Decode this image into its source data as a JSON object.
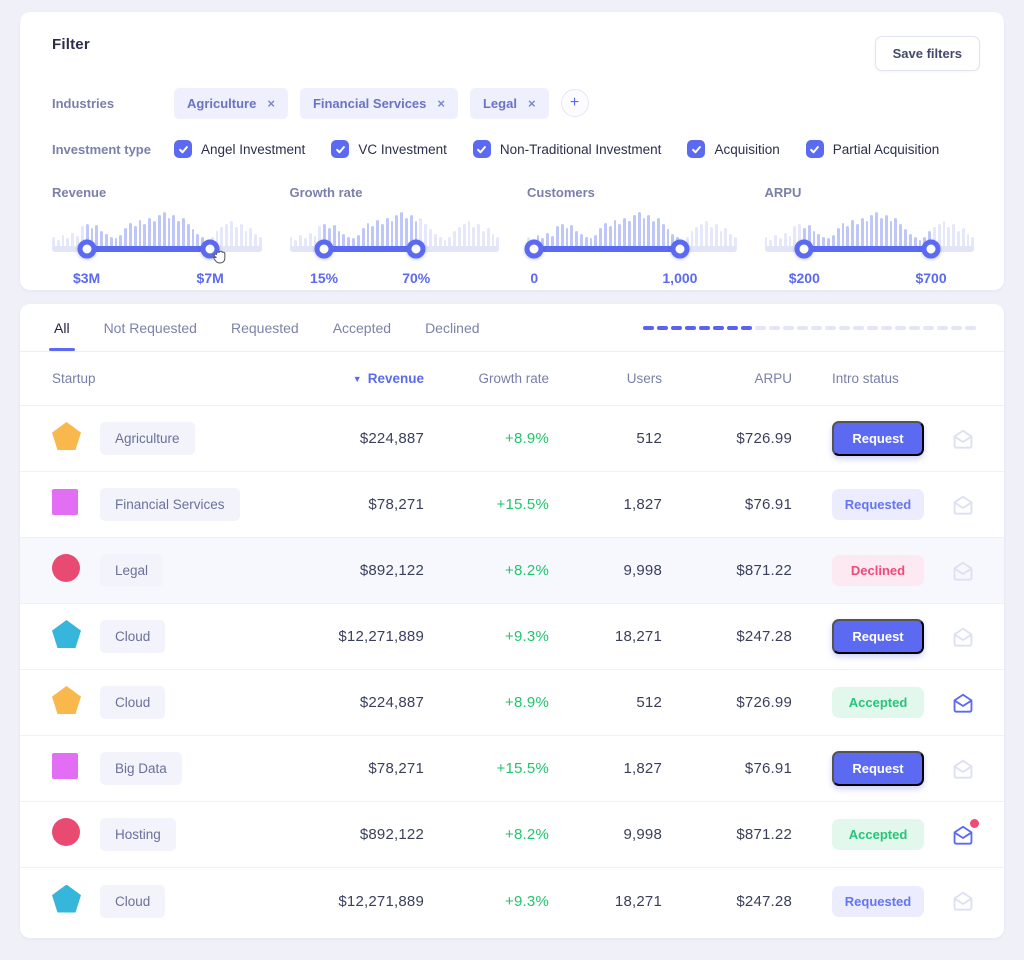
{
  "colors": {
    "accent": "#5b6af0",
    "green": "#21c56e",
    "declined_text": "#f5477b",
    "accepted_text": "#27c479",
    "mail_default": "#dde0f3",
    "mail_active": "#5b6af0",
    "dot": "#ef4b76"
  },
  "filter": {
    "title": "Filter",
    "save_button_label": "Save filters",
    "industries_label": "Industries",
    "industry_chips": [
      "Agriculture",
      "Financial Services",
      "Legal"
    ],
    "investment_label": "Investment type",
    "investment_types": [
      "Angel Investment",
      "VC Investment",
      "Non-Traditional Investment",
      "Acquisition",
      "Partial Acquisition"
    ],
    "histogram": [
      0.3,
      0.22,
      0.34,
      0.26,
      0.4,
      0.32,
      0.58,
      0.64,
      0.52,
      0.6,
      0.46,
      0.38,
      0.3,
      0.26,
      0.34,
      0.52,
      0.66,
      0.58,
      0.74,
      0.62,
      0.8,
      0.7,
      0.86,
      0.94,
      0.8,
      0.86,
      0.72,
      0.78,
      0.62,
      0.5,
      0.38,
      0.28,
      0.22,
      0.3,
      0.46,
      0.56,
      0.64,
      0.72,
      0.56,
      0.62,
      0.46,
      0.52,
      0.36,
      0.28
    ],
    "sliders": [
      {
        "label": "Revenue",
        "min": "$3M",
        "max": "$7M",
        "left_pct": 16.5,
        "right_pct": 75.5,
        "cursor": true
      },
      {
        "label": "Growth rate",
        "min": "15%",
        "max": "70%",
        "left_pct": 16.5,
        "right_pct": 60.5,
        "cursor": false
      },
      {
        "label": "Customers",
        "min": "0",
        "max": "1,000",
        "left_pct": 3.5,
        "right_pct": 73.0,
        "cursor": false
      },
      {
        "label": "ARPU",
        "min": "$200",
        "max": "$700",
        "left_pct": 19.0,
        "right_pct": 79.5,
        "cursor": false
      }
    ]
  },
  "tabs": {
    "items": [
      "All",
      "Not Requested",
      "Requested",
      "Accepted",
      "Declined"
    ],
    "active": "All"
  },
  "progress": {
    "total": 24,
    "filled": 8
  },
  "table": {
    "headers": {
      "startup": "Startup",
      "revenue": "Revenue",
      "growth": "Growth rate",
      "users": "Users",
      "arpu": "ARPU",
      "status": "Intro status"
    },
    "sort": {
      "column": "revenue",
      "direction": "desc"
    },
    "rows": [
      {
        "shape": "pentagon",
        "color": "#f9b84b",
        "industry": "Agriculture",
        "revenue": "$224,887",
        "growth": "+8.9%",
        "users": "512",
        "arpu": "$726.99",
        "status": "Request",
        "status_type": "button",
        "mail": "default",
        "highlight": false
      },
      {
        "shape": "square",
        "color": "#e26ef4",
        "industry": "Financial Services",
        "revenue": "$78,271",
        "growth": "+15.5%",
        "users": "1,827",
        "arpu": "$76.91",
        "status": "Requested",
        "status_type": "requested",
        "mail": "default",
        "highlight": false
      },
      {
        "shape": "circle",
        "color": "#e84a72",
        "industry": "Legal",
        "revenue": "$892,122",
        "growth": "+8.2%",
        "users": "9,998",
        "arpu": "$871.22",
        "status": "Declined",
        "status_type": "declined",
        "mail": "default",
        "highlight": true
      },
      {
        "shape": "pentagon",
        "color": "#35b6da",
        "industry": "Cloud",
        "revenue": "$12,271,889",
        "growth": "+9.3%",
        "users": "18,271",
        "arpu": "$247.28",
        "status": "Request",
        "status_type": "button",
        "mail": "default",
        "highlight": false
      },
      {
        "shape": "pentagon",
        "color": "#f9b84b",
        "industry": "Cloud",
        "revenue": "$224,887",
        "growth": "+8.9%",
        "users": "512",
        "arpu": "$726.99",
        "status": "Accepted",
        "status_type": "accepted",
        "mail": "active",
        "highlight": false
      },
      {
        "shape": "square",
        "color": "#e26ef4",
        "industry": "Big Data",
        "revenue": "$78,271",
        "growth": "+15.5%",
        "users": "1,827",
        "arpu": "$76.91",
        "status": "Request",
        "status_type": "button",
        "mail": "default",
        "highlight": false
      },
      {
        "shape": "circle",
        "color": "#e84a72",
        "industry": "Hosting",
        "revenue": "$892,122",
        "growth": "+8.2%",
        "users": "9,998",
        "arpu": "$871.22",
        "status": "Accepted",
        "status_type": "accepted",
        "mail": "active-dot",
        "highlight": false
      },
      {
        "shape": "pentagon",
        "color": "#35b6da",
        "industry": "Cloud",
        "revenue": "$12,271,889",
        "growth": "+9.3%",
        "users": "18,271",
        "arpu": "$247.28",
        "status": "Requested",
        "status_type": "requested",
        "mail": "default",
        "highlight": false
      }
    ]
  }
}
